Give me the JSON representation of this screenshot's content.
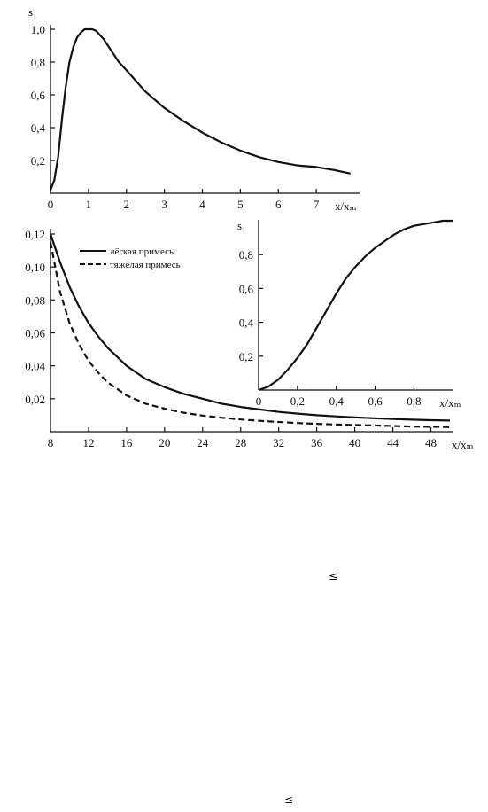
{
  "chart_data": [
    {
      "type": "line",
      "ylabel": "s₁",
      "xlabel": "x/xₘ",
      "xlim": [
        0,
        8
      ],
      "ylim": [
        0,
        1.0
      ],
      "xticks": [
        "0",
        "1",
        "2",
        "3",
        "4",
        "5",
        "6",
        "7"
      ],
      "yticks": [
        "0,2",
        "0,4",
        "0,6",
        "0,8",
        "1,0"
      ],
      "series": [
        {
          "x": [
            0,
            0.1,
            0.2,
            0.3,
            0.4,
            0.5,
            0.6,
            0.7,
            0.8,
            0.9,
            1.0,
            1.1,
            1.2,
            1.4,
            1.6,
            1.8,
            2.0,
            2.5,
            3.0,
            3.5,
            4.0,
            4.5,
            5.0,
            5.5,
            6.0,
            6.5,
            7.0,
            7.5,
            7.9
          ],
          "y": [
            0.02,
            0.08,
            0.22,
            0.45,
            0.65,
            0.8,
            0.89,
            0.95,
            0.98,
            1.0,
            1.0,
            1.0,
            0.99,
            0.94,
            0.87,
            0.8,
            0.75,
            0.62,
            0.52,
            0.44,
            0.37,
            0.31,
            0.26,
            0.22,
            0.19,
            0.17,
            0.16,
            0.14,
            0.12
          ]
        }
      ]
    },
    {
      "type": "line",
      "xlabel": "x/xₘ",
      "xlim": [
        8,
        50
      ],
      "ylim": [
        0,
        0.12
      ],
      "xticks": [
        "8",
        "12",
        "16",
        "20",
        "24",
        "28",
        "32",
        "36",
        "40",
        "44",
        "48"
      ],
      "yticks": [
        "0,02",
        "0,04",
        "0,06",
        "0,08",
        "0,10",
        "0,12"
      ],
      "legend_position": "top-left",
      "series": [
        {
          "name": "лёгкая примесь",
          "style": "solid",
          "x": [
            8,
            9,
            10,
            11,
            12,
            13,
            14,
            16,
            18,
            20,
            22,
            24,
            26,
            28,
            30,
            32,
            34,
            36,
            38,
            40,
            42,
            44,
            46,
            48,
            50
          ],
          "y": [
            0.12,
            0.103,
            0.088,
            0.076,
            0.066,
            0.058,
            0.051,
            0.04,
            0.032,
            0.027,
            0.023,
            0.02,
            0.017,
            0.015,
            0.0135,
            0.012,
            0.011,
            0.01,
            0.0093,
            0.0087,
            0.0082,
            0.0077,
            0.0073,
            0.007,
            0.0068
          ]
        },
        {
          "name": "тяжёлая примесь",
          "style": "dashed",
          "x": [
            8,
            9,
            10,
            11,
            12,
            13,
            14,
            16,
            18,
            20,
            22,
            24,
            26,
            28,
            30,
            32,
            34,
            36,
            38,
            40,
            42,
            44,
            46,
            48,
            50
          ],
          "y": [
            0.115,
            0.085,
            0.066,
            0.053,
            0.043,
            0.036,
            0.03,
            0.022,
            0.017,
            0.014,
            0.0115,
            0.0098,
            0.0085,
            0.0074,
            0.0066,
            0.0059,
            0.0053,
            0.0048,
            0.0044,
            0.0041,
            0.0038,
            0.0035,
            0.0032,
            0.003,
            0.0028
          ]
        }
      ]
    },
    {
      "type": "line",
      "ylabel": "s₁",
      "xlabel": "x/xₘ",
      "xlim": [
        0,
        1.0
      ],
      "ylim": [
        0,
        1.0
      ],
      "xticks": [
        "0",
        "0,2",
        "0,4",
        "0,6",
        "0,8"
      ],
      "yticks": [
        "0,2",
        "0,4",
        "0,6",
        "0,8"
      ],
      "series": [
        {
          "x": [
            0,
            0.05,
            0.1,
            0.15,
            0.2,
            0.25,
            0.3,
            0.35,
            0.4,
            0.45,
            0.5,
            0.55,
            0.6,
            0.65,
            0.7,
            0.75,
            0.8,
            0.85,
            0.9,
            0.95,
            1.0
          ],
          "y": [
            0,
            0.02,
            0.06,
            0.12,
            0.19,
            0.27,
            0.37,
            0.47,
            0.57,
            0.66,
            0.73,
            0.79,
            0.84,
            0.88,
            0.92,
            0.95,
            0.97,
            0.98,
            0.99,
            1.0,
            1.0
          ]
        }
      ]
    }
  ],
  "symbols": [
    "≤",
    "≤"
  ]
}
